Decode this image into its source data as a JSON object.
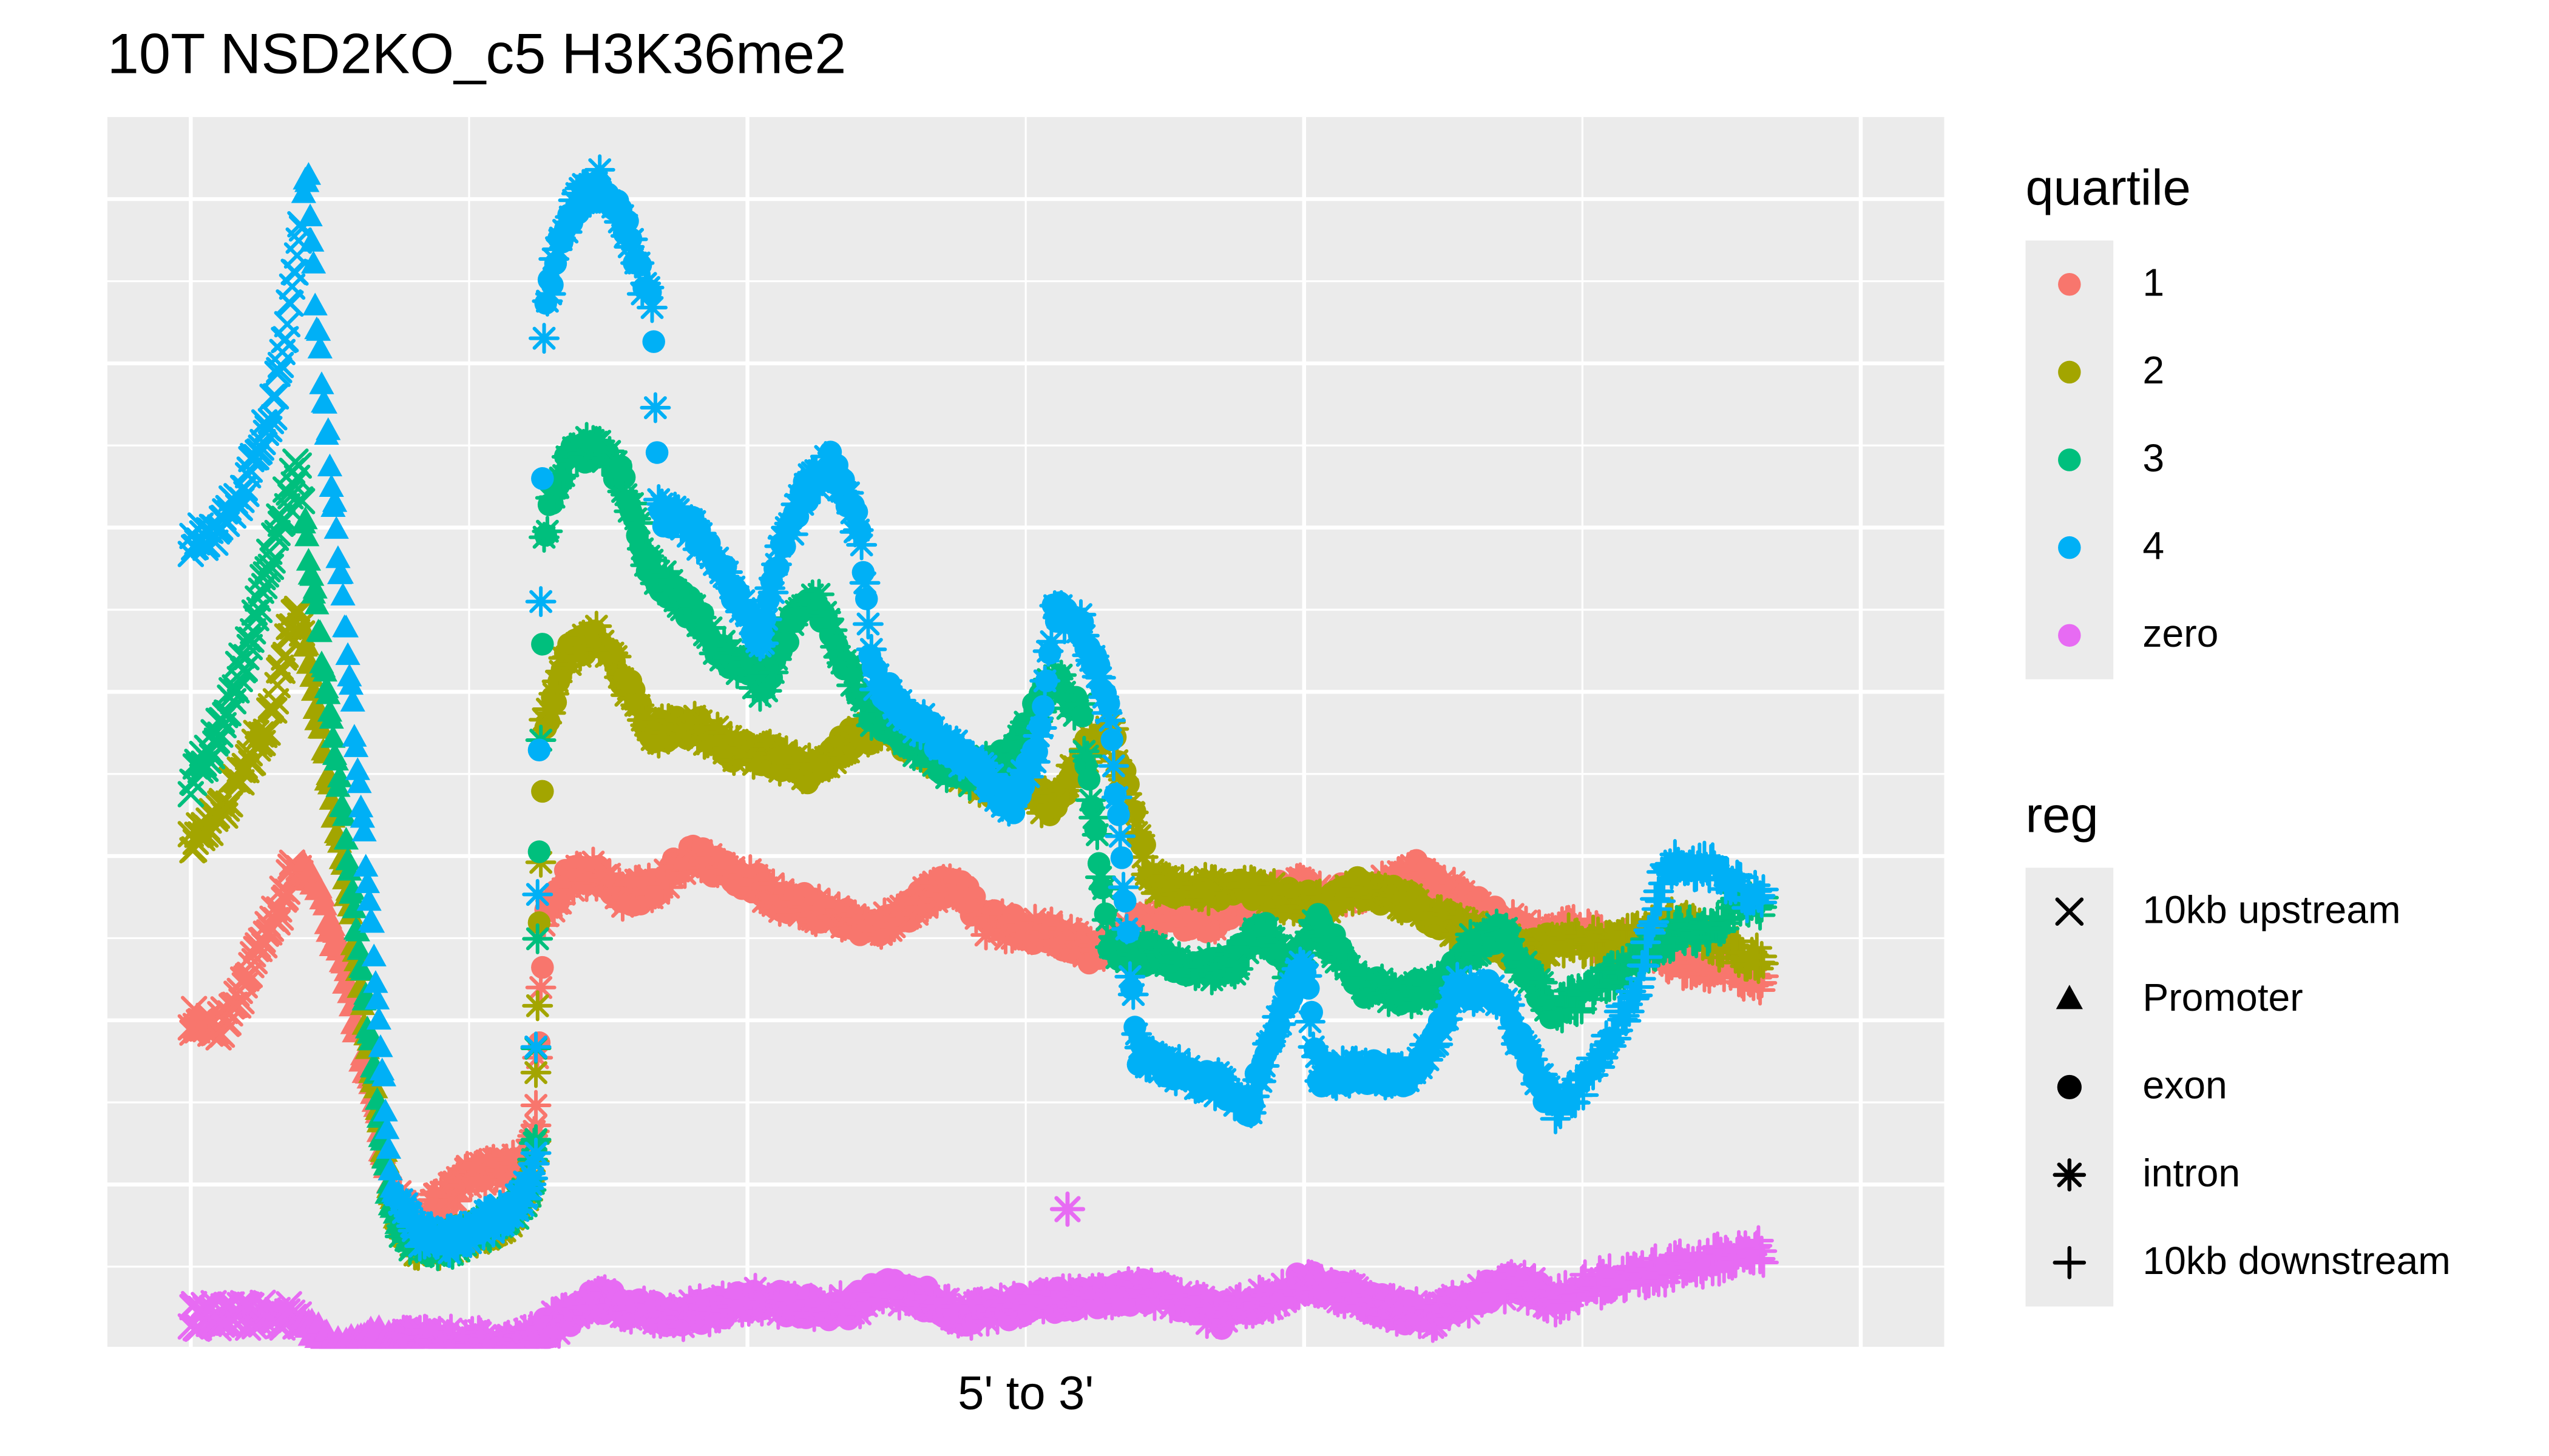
{
  "title": "10T NSD2KO_c5 H3K36me2",
  "xlabel": "5' to 3'",
  "legend_quartile": {
    "title": "quartile",
    "items": [
      {
        "label": "1",
        "color": "#F8766D"
      },
      {
        "label": "2",
        "color": "#A3A500"
      },
      {
        "label": "3",
        "color": "#00BF7D"
      },
      {
        "label": "4",
        "color": "#00B0F6"
      },
      {
        "label": "zero",
        "color": "#E76BF3"
      }
    ]
  },
  "legend_reg": {
    "title": "reg",
    "items": [
      {
        "label": "10kb upstream",
        "shape": "x"
      },
      {
        "label": "Promoter",
        "shape": "triangle"
      },
      {
        "label": "exon",
        "shape": "circle"
      },
      {
        "label": "intron",
        "shape": "asterisk"
      },
      {
        "label": "10kb downstream",
        "shape": "plus"
      }
    ]
  },
  "chart_data": {
    "type": "scatter",
    "title": "10T NSD2KO_c5 H3K36me2",
    "xlabel": "5' to 3'",
    "ylabel": "",
    "xlim": [
      -0.3,
      6.3
    ],
    "ylim": [
      0.0,
      7.5
    ],
    "x_tick_labels": [],
    "y_tick_labels": [],
    "grid": true,
    "legend_placement": "right",
    "regions": [
      {
        "name": "10kb upstream",
        "shape": "x",
        "x_range": [
          0.0,
          0.4
        ]
      },
      {
        "name": "Promoter",
        "shape": "triangle",
        "x_range": [
          0.4,
          0.75
        ]
      },
      {
        "name": "intron",
        "shape": "asterisk",
        "x_range": [
          0.75,
          1.25
        ]
      },
      {
        "name": "exon",
        "shape": "circle",
        "x_range": [
          1.25,
          4.9
        ]
      },
      {
        "name": "intron",
        "shape": "asterisk",
        "x_range": [
          1.25,
          4.9
        ]
      },
      {
        "name": "10kb downstream",
        "shape": "plus",
        "x_range": [
          4.9,
          5.65
        ]
      }
    ],
    "series": [
      {
        "name": "1",
        "color": "#F8766D",
        "traces": [
          {
            "x": [
              0.0,
              0.1,
              0.2,
              0.3,
              0.38,
              0.45,
              0.55,
              0.65,
              0.72,
              0.8,
              0.9,
              1.0,
              1.1,
              1.18,
              1.22,
              1.24
            ],
            "y": [
              2.0,
              1.95,
              2.25,
              2.6,
              2.95,
              2.8,
              2.3,
              1.5,
              1.0,
              0.75,
              0.9,
              1.05,
              1.1,
              1.1,
              1.2,
              1.3
            ]
          },
          {
            "x": [
              1.24,
              1.27,
              1.35,
              1.45,
              1.55,
              1.65,
              1.8,
              1.95,
              2.1,
              2.3,
              2.45,
              2.6,
              2.75,
              2.85,
              3.0,
              3.15,
              3.25,
              3.35,
              3.5,
              3.65,
              3.8,
              3.95,
              4.1,
              4.25,
              4.4,
              4.55,
              4.7,
              4.85,
              5.0,
              5.1,
              5.2,
              5.3,
              5.4,
              5.5,
              5.6,
              5.65
            ],
            "y": [
              1.5,
              2.6,
              2.85,
              2.9,
              2.75,
              2.8,
              3.0,
              2.9,
              2.75,
              2.65,
              2.55,
              2.7,
              2.85,
              2.6,
              2.55,
              2.5,
              2.4,
              2.5,
              2.65,
              2.6,
              2.7,
              2.8,
              2.75,
              2.8,
              2.9,
              2.75,
              2.6,
              2.5,
              2.55,
              2.45,
              2.5,
              2.4,
              2.3,
              2.35,
              2.25,
              2.2
            ]
          }
        ]
      },
      {
        "name": "2",
        "color": "#A3A500",
        "traces": [
          {
            "x": [
              0.0,
              0.1,
              0.2,
              0.3,
              0.38,
              0.45,
              0.55,
              0.65,
              0.72,
              0.8,
              0.9,
              1.0,
              1.1,
              1.18,
              1.22,
              1.24
            ],
            "y": [
              3.1,
              3.25,
              3.55,
              3.9,
              4.6,
              3.9,
              2.9,
              1.7,
              0.9,
              0.65,
              0.62,
              0.7,
              0.75,
              0.85,
              1.0,
              1.3
            ]
          },
          {
            "x": [
              1.24,
              1.27,
              1.35,
              1.45,
              1.55,
              1.65,
              1.8,
              1.95,
              2.1,
              2.25,
              2.35,
              2.5,
              2.65,
              2.8,
              2.9,
              3.0,
              3.1,
              3.2,
              3.3,
              3.45,
              3.6,
              3.75,
              3.9,
              4.05,
              4.2,
              4.35,
              4.5,
              4.65,
              4.8,
              4.95,
              5.1,
              5.2,
              5.3,
              5.4,
              5.5,
              5.6,
              5.65
            ],
            "y": [
              1.7,
              3.8,
              4.2,
              4.35,
              4.1,
              3.75,
              3.8,
              3.65,
              3.6,
              3.5,
              3.7,
              3.8,
              3.6,
              3.5,
              3.4,
              3.4,
              3.3,
              3.6,
              3.8,
              2.85,
              2.8,
              2.8,
              2.75,
              2.7,
              2.8,
              2.75,
              2.6,
              2.5,
              2.4,
              2.5,
              2.45,
              2.5,
              2.6,
              2.55,
              2.45,
              2.4,
              2.35
            ]
          }
        ]
      },
      {
        "name": "3",
        "color": "#00BF7D",
        "traces": [
          {
            "x": [
              0.0,
              0.1,
              0.2,
              0.3,
              0.38,
              0.45,
              0.55,
              0.65,
              0.72,
              0.8,
              0.9,
              1.0,
              1.1,
              1.18,
              1.22,
              1.24
            ],
            "y": [
              3.45,
              3.75,
              4.25,
              4.9,
              5.4,
              4.5,
              3.2,
              1.8,
              0.8,
              0.65,
              0.62,
              0.7,
              0.75,
              0.85,
              1.0,
              1.3
            ]
          },
          {
            "x": [
              1.24,
              1.27,
              1.35,
              1.45,
              1.55,
              1.65,
              1.8,
              1.9,
              2.0,
              2.05,
              2.15,
              2.25,
              2.35,
              2.45,
              2.55,
              2.65,
              2.8,
              2.95,
              3.1,
              3.2,
              3.3,
              3.45,
              3.6,
              3.75,
              3.85,
              3.95,
              4.05,
              4.2,
              4.35,
              4.5,
              4.6,
              4.7,
              4.8,
              4.9,
              5.05,
              5.15,
              5.25,
              5.35,
              5.45,
              5.55,
              5.65
            ],
            "y": [
              1.8,
              5.0,
              5.4,
              5.5,
              5.3,
              4.75,
              4.5,
              4.25,
              4.15,
              4.0,
              4.4,
              4.55,
              4.2,
              3.85,
              3.75,
              3.6,
              3.5,
              3.6,
              4.1,
              3.85,
              2.45,
              2.4,
              2.3,
              2.35,
              2.55,
              2.3,
              2.6,
              2.2,
              2.15,
              2.2,
              2.45,
              2.55,
              2.3,
              2.05,
              2.2,
              2.3,
              2.45,
              2.55,
              2.55,
              2.7,
              2.7
            ]
          }
        ]
      },
      {
        "name": "4",
        "color": "#00B0F6",
        "traces": [
          {
            "x": [
              0.0,
              0.1,
              0.2,
              0.3,
              0.34,
              0.38,
              0.42,
              0.45,
              0.55,
              0.65,
              0.72,
              0.8,
              0.9,
              1.0,
              1.1,
              1.18,
              1.22,
              1.24
            ],
            "y": [
              4.9,
              5.0,
              5.25,
              5.75,
              6.2,
              6.6,
              7.2,
              6.3,
              4.5,
              2.6,
              1.0,
              0.72,
              0.65,
              0.7,
              0.8,
              0.9,
              1.0,
              1.2
            ]
          },
          {
            "x": [
              1.24,
              1.27,
              1.33,
              1.4,
              1.47,
              1.55,
              1.62,
              1.66,
              1.68,
              1.8,
              1.9,
              2.0,
              2.05,
              2.1,
              2.2,
              2.3,
              2.4,
              2.45,
              2.55,
              2.7,
              2.85,
              2.95,
              3.05,
              3.1,
              3.2,
              3.3,
              3.4,
              3.55,
              3.7,
              3.8,
              3.9,
              4.0,
              4.05,
              4.2,
              4.35,
              4.45,
              4.55,
              4.7,
              4.8,
              4.9,
              5.0,
              5.1,
              5.2,
              5.3,
              5.4,
              5.5,
              5.6,
              5.65
            ],
            "y": [
              1.9,
              6.3,
              6.8,
              7.0,
              7.1,
              6.9,
              6.5,
              6.4,
              5.1,
              5.0,
              4.75,
              4.5,
              4.3,
              4.75,
              5.2,
              5.4,
              5.0,
              4.1,
              3.9,
              3.7,
              3.5,
              3.3,
              3.7,
              4.5,
              4.4,
              3.9,
              1.8,
              1.7,
              1.6,
              1.45,
              2.0,
              2.35,
              1.65,
              1.7,
              1.65,
              1.8,
              2.2,
              2.15,
              1.8,
              1.45,
              1.6,
              1.9,
              2.2,
              2.95,
              2.95,
              2.9,
              2.75,
              2.75
            ]
          }
        ]
      },
      {
        "name": "zero",
        "color": "#E76BF3",
        "traces": [
          {
            "x": [
              0.0,
              0.2,
              0.4,
              0.5,
              0.6,
              0.75,
              0.9,
              1.0,
              1.1,
              1.2,
              1.3,
              1.45,
              1.6,
              1.75,
              1.9,
              2.05,
              2.2,
              2.35,
              2.5,
              2.65,
              2.8,
              2.95,
              3.1,
              3.25,
              3.4,
              3.55,
              3.7,
              3.85,
              4.0,
              4.15,
              4.3,
              4.45,
              4.6,
              4.75,
              4.9,
              5.05,
              5.2,
              5.35,
              5.5,
              5.65
            ],
            "y": [
              0.2,
              0.2,
              0.2,
              0.0,
              0.05,
              0.05,
              0.05,
              0.05,
              0.0,
              0.05,
              0.15,
              0.3,
              0.25,
              0.2,
              0.25,
              0.3,
              0.25,
              0.25,
              0.35,
              0.3,
              0.2,
              0.25,
              0.3,
              0.3,
              0.35,
              0.3,
              0.2,
              0.3,
              0.4,
              0.35,
              0.25,
              0.2,
              0.3,
              0.4,
              0.3,
              0.4,
              0.45,
              0.5,
              0.55,
              0.6
            ]
          },
          {
            "x": [
              3.15
            ],
            "y": [
              0.85
            ]
          }
        ]
      }
    ]
  }
}
